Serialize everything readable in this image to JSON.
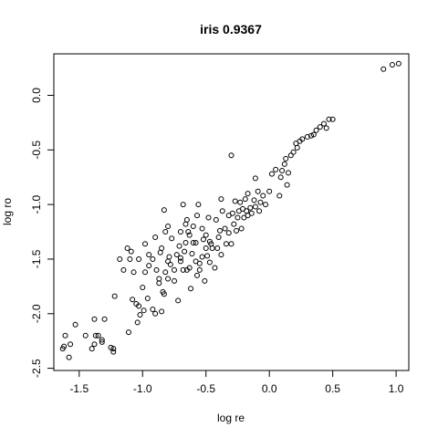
{
  "chart_data": {
    "type": "scatter",
    "title": "iris 0.9367",
    "xlabel": "log re",
    "ylabel": "log ro",
    "xlim": [
      -1.7,
      1.1
    ],
    "ylim": [
      -2.52,
      0.38
    ],
    "x_ticks": [
      -1.5,
      -1.0,
      -0.5,
      0.0,
      0.5,
      1.0
    ],
    "x_tick_labels": [
      "-1.5",
      "-1.0",
      "-0.5",
      "0.0",
      "0.5",
      "1.0"
    ],
    "y_ticks": [
      -2.5,
      -2.0,
      -1.5,
      -1.0,
      -0.5,
      0.0
    ],
    "y_tick_labels": [
      "-2.5",
      "-2.0",
      "-1.5",
      "-1.0",
      "-0.5",
      "0.0"
    ],
    "grid": false,
    "legend": "none",
    "marker": "open-circle",
    "series": [
      {
        "points": [
          [
            -1.63,
            -2.32
          ],
          [
            -1.62,
            -2.3
          ],
          [
            -1.61,
            -2.2
          ],
          [
            -1.57,
            -2.28
          ],
          [
            -1.58,
            -2.4
          ],
          [
            -1.53,
            -2.1
          ],
          [
            -1.45,
            -2.2
          ],
          [
            -1.4,
            -2.32
          ],
          [
            -1.38,
            -2.28
          ],
          [
            -1.37,
            -2.2
          ],
          [
            -1.38,
            -2.05
          ],
          [
            -1.35,
            -2.2
          ],
          [
            -1.32,
            -2.26
          ],
          [
            -1.32,
            -2.24
          ],
          [
            -1.3,
            -2.05
          ],
          [
            -1.25,
            -2.31
          ],
          [
            -1.23,
            -2.32
          ],
          [
            -1.23,
            -2.35
          ],
          [
            -1.22,
            -1.84
          ],
          [
            -1.18,
            -1.5
          ],
          [
            -1.15,
            -1.6
          ],
          [
            -1.12,
            -1.4
          ],
          [
            -1.11,
            -2.17
          ],
          [
            -1.1,
            -1.5
          ],
          [
            -1.09,
            -1.43
          ],
          [
            -1.08,
            -1.87
          ],
          [
            -1.07,
            -1.62
          ],
          [
            -1.05,
            -1.91
          ],
          [
            -1.04,
            -2.08
          ],
          [
            -1.03,
            -1.5
          ],
          [
            -1.03,
            -1.93
          ],
          [
            -1.02,
            -2.01
          ],
          [
            -1.0,
            -1.76
          ],
          [
            -0.99,
            -1.97
          ],
          [
            -0.98,
            -1.36
          ],
          [
            -0.98,
            -1.62
          ],
          [
            -0.96,
            -1.86
          ],
          [
            -0.95,
            -1.56
          ],
          [
            -0.95,
            -1.46
          ],
          [
            -0.92,
            -1.5
          ],
          [
            -0.92,
            -1.96
          ],
          [
            -0.9,
            -2.0
          ],
          [
            -0.9,
            -1.3
          ],
          [
            -0.89,
            -1.6
          ],
          [
            -0.87,
            -1.68
          ],
          [
            -0.87,
            -1.72
          ],
          [
            -0.86,
            -1.44
          ],
          [
            -0.85,
            -1.4
          ],
          [
            -0.85,
            -1.98
          ],
          [
            -0.84,
            -1.8
          ],
          [
            -0.83,
            -1.82
          ],
          [
            -0.83,
            -1.05
          ],
          [
            -0.82,
            -1.25
          ],
          [
            -0.82,
            -1.62
          ],
          [
            -0.8,
            -1.52
          ],
          [
            -0.8,
            -1.2
          ],
          [
            -0.8,
            -1.68
          ],
          [
            -0.79,
            -1.48
          ],
          [
            -0.78,
            -1.55
          ],
          [
            -0.77,
            -1.31
          ],
          [
            -0.75,
            -1.6
          ],
          [
            -0.75,
            -1.7
          ],
          [
            -0.73,
            -1.46
          ],
          [
            -0.72,
            -1.88
          ],
          [
            -0.71,
            -1.38
          ],
          [
            -0.7,
            -1.49
          ],
          [
            -0.7,
            -1.52
          ],
          [
            -0.7,
            -1.25
          ],
          [
            -0.68,
            -1.0
          ],
          [
            -0.68,
            -1.6
          ],
          [
            -0.67,
            -1.43
          ],
          [
            -0.66,
            -1.35
          ],
          [
            -0.66,
            -1.18
          ],
          [
            -0.65,
            -1.14
          ],
          [
            -0.65,
            -1.6
          ],
          [
            -0.64,
            -1.25
          ],
          [
            -0.63,
            -1.28
          ],
          [
            -0.63,
            -1.58
          ],
          [
            -0.62,
            -1.77
          ],
          [
            -0.61,
            -1.45
          ],
          [
            -0.6,
            -1.2
          ],
          [
            -0.6,
            -1.35
          ],
          [
            -0.58,
            -1.35
          ],
          [
            -0.58,
            -1.52
          ],
          [
            -0.57,
            -1.1
          ],
          [
            -0.57,
            -1.65
          ],
          [
            -0.56,
            -1.0
          ],
          [
            -0.55,
            -1.6
          ],
          [
            -0.55,
            -1.54
          ],
          [
            -0.53,
            -1.22
          ],
          [
            -0.53,
            -1.48
          ],
          [
            -0.52,
            -1.32
          ],
          [
            -0.51,
            -1.7
          ],
          [
            -0.5,
            -1.4
          ],
          [
            -0.5,
            -1.28
          ],
          [
            -0.49,
            -1.47
          ],
          [
            -0.48,
            -1.12
          ],
          [
            -0.47,
            -1.34
          ],
          [
            -0.47,
            -1.53
          ],
          [
            -0.46,
            -1.36
          ],
          [
            -0.45,
            -1.4
          ],
          [
            -0.43,
            -1.58
          ],
          [
            -0.42,
            -1.14
          ],
          [
            -0.41,
            -1.4
          ],
          [
            -0.4,
            -1.3
          ],
          [
            -0.39,
            -1.24
          ],
          [
            -0.38,
            -0.95
          ],
          [
            -0.38,
            -1.46
          ],
          [
            -0.37,
            -1.06
          ],
          [
            -0.35,
            -1.22
          ],
          [
            -0.34,
            -1.36
          ],
          [
            -0.32,
            -1.1
          ],
          [
            -0.32,
            -1.26
          ],
          [
            -0.3,
            -0.55
          ],
          [
            -0.3,
            -1.36
          ],
          [
            -0.29,
            -1.08
          ],
          [
            -0.28,
            -1.18
          ],
          [
            -0.27,
            -0.97
          ],
          [
            -0.26,
            -1.24
          ],
          [
            -0.25,
            -1.12
          ],
          [
            -0.24,
            -1.06
          ],
          [
            -0.23,
            -0.98
          ],
          [
            -0.22,
            -1.22
          ],
          [
            -0.21,
            -1.04
          ],
          [
            -0.2,
            -1.12
          ],
          [
            -0.19,
            -0.95
          ],
          [
            -0.18,
            -1.06
          ],
          [
            -0.17,
            -0.9
          ],
          [
            -0.17,
            -1.1
          ],
          [
            -0.15,
            -1.03
          ],
          [
            -0.14,
            -1.08
          ],
          [
            -0.12,
            -0.96
          ],
          [
            -0.11,
            -0.76
          ],
          [
            -0.11,
            -1.02
          ],
          [
            -0.09,
            -0.88
          ],
          [
            -0.08,
            -1.06
          ],
          [
            -0.07,
            -0.98
          ],
          [
            -0.05,
            -0.92
          ],
          [
            -0.03,
            -1.0
          ],
          [
            0.0,
            -0.88
          ],
          [
            0.02,
            -0.72
          ],
          [
            0.05,
            -0.68
          ],
          [
            0.08,
            -0.92
          ],
          [
            0.09,
            -0.75
          ],
          [
            0.1,
            -0.69
          ],
          [
            0.12,
            -0.63
          ],
          [
            0.13,
            -0.58
          ],
          [
            0.14,
            -0.82
          ],
          [
            0.15,
            -0.71
          ],
          [
            0.17,
            -0.55
          ],
          [
            0.19,
            -0.52
          ],
          [
            0.21,
            -0.44
          ],
          [
            0.22,
            -0.48
          ],
          [
            0.24,
            -0.42
          ],
          [
            0.26,
            -0.4
          ],
          [
            0.3,
            -0.38
          ],
          [
            0.33,
            -0.37
          ],
          [
            0.35,
            -0.36
          ],
          [
            0.37,
            -0.32
          ],
          [
            0.4,
            -0.29
          ],
          [
            0.43,
            -0.26
          ],
          [
            0.45,
            -0.3
          ],
          [
            0.47,
            -0.22
          ],
          [
            0.5,
            -0.22
          ],
          [
            0.9,
            0.24
          ],
          [
            0.97,
            0.28
          ],
          [
            1.02,
            0.29
          ]
        ]
      }
    ]
  }
}
